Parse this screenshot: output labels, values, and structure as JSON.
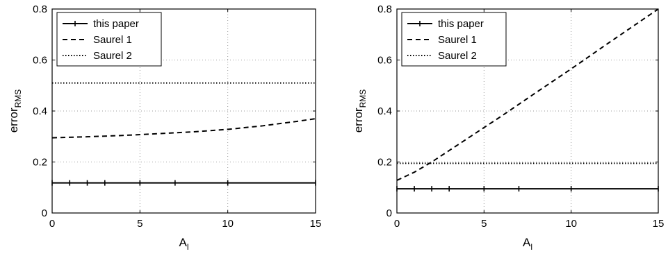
{
  "chart_data": [
    {
      "type": "line",
      "title": "",
      "xlabel": "A",
      "xlabel_sub": "l",
      "ylabel": "error",
      "ylabel_sub": "RMS",
      "xlim": [
        0,
        15
      ],
      "ylim": [
        0,
        0.8
      ],
      "xticks": [
        0,
        5,
        10,
        15
      ],
      "yticks": [
        0,
        0.2,
        0.4,
        0.6,
        0.8
      ],
      "xtick_labels": [
        "0",
        "5",
        "10",
        "15"
      ],
      "ytick_labels": [
        "0",
        "0.2",
        "0.4",
        "0.6",
        "0.8"
      ],
      "grid": true,
      "legend": "top-left",
      "series": [
        {
          "name": "this paper",
          "style": "solid-marker",
          "color": "#000000",
          "x": [
            0,
            1,
            2,
            3,
            5,
            7,
            10,
            15
          ],
          "y": [
            0.118,
            0.118,
            0.118,
            0.118,
            0.118,
            0.118,
            0.118,
            0.118
          ]
        },
        {
          "name": "Saurel 1",
          "style": "dashed",
          "color": "#000000",
          "x": [
            0,
            2,
            4,
            6,
            8,
            10,
            12,
            14,
            15
          ],
          "y": [
            0.295,
            0.299,
            0.304,
            0.311,
            0.318,
            0.328,
            0.342,
            0.36,
            0.37
          ]
        },
        {
          "name": "Saurel 2",
          "style": "dotted",
          "color": "#000000",
          "x": [
            0,
            15
          ],
          "y": [
            0.51,
            0.51
          ]
        }
      ]
    },
    {
      "type": "line",
      "title": "",
      "xlabel": "A",
      "xlabel_sub": "l",
      "ylabel": "error",
      "ylabel_sub": "RMS",
      "xlim": [
        0,
        15
      ],
      "ylim": [
        0,
        0.8
      ],
      "xticks": [
        0,
        5,
        10,
        15
      ],
      "yticks": [
        0,
        0.2,
        0.4,
        0.6,
        0.8
      ],
      "xtick_labels": [
        "0",
        "5",
        "10",
        "15"
      ],
      "ytick_labels": [
        "0",
        "0.2",
        "0.4",
        "0.6",
        "0.8"
      ],
      "grid": true,
      "legend": "top-left",
      "series": [
        {
          "name": "this paper",
          "style": "solid-marker",
          "color": "#000000",
          "x": [
            0,
            1,
            2,
            3,
            5,
            7,
            10,
            15
          ],
          "y": [
            0.095,
            0.095,
            0.095,
            0.095,
            0.095,
            0.095,
            0.095,
            0.095
          ]
        },
        {
          "name": "Saurel 1",
          "style": "dashed",
          "color": "#000000",
          "x": [
            0,
            1,
            2,
            3,
            4,
            5,
            6,
            8,
            10,
            12,
            15
          ],
          "y": [
            0.128,
            0.16,
            0.2,
            0.245,
            0.29,
            0.335,
            0.38,
            0.473,
            0.565,
            0.66,
            0.8
          ]
        },
        {
          "name": "Saurel 2",
          "style": "dotted",
          "color": "#000000",
          "x": [
            0,
            15
          ],
          "y": [
            0.195,
            0.195
          ]
        }
      ]
    }
  ]
}
